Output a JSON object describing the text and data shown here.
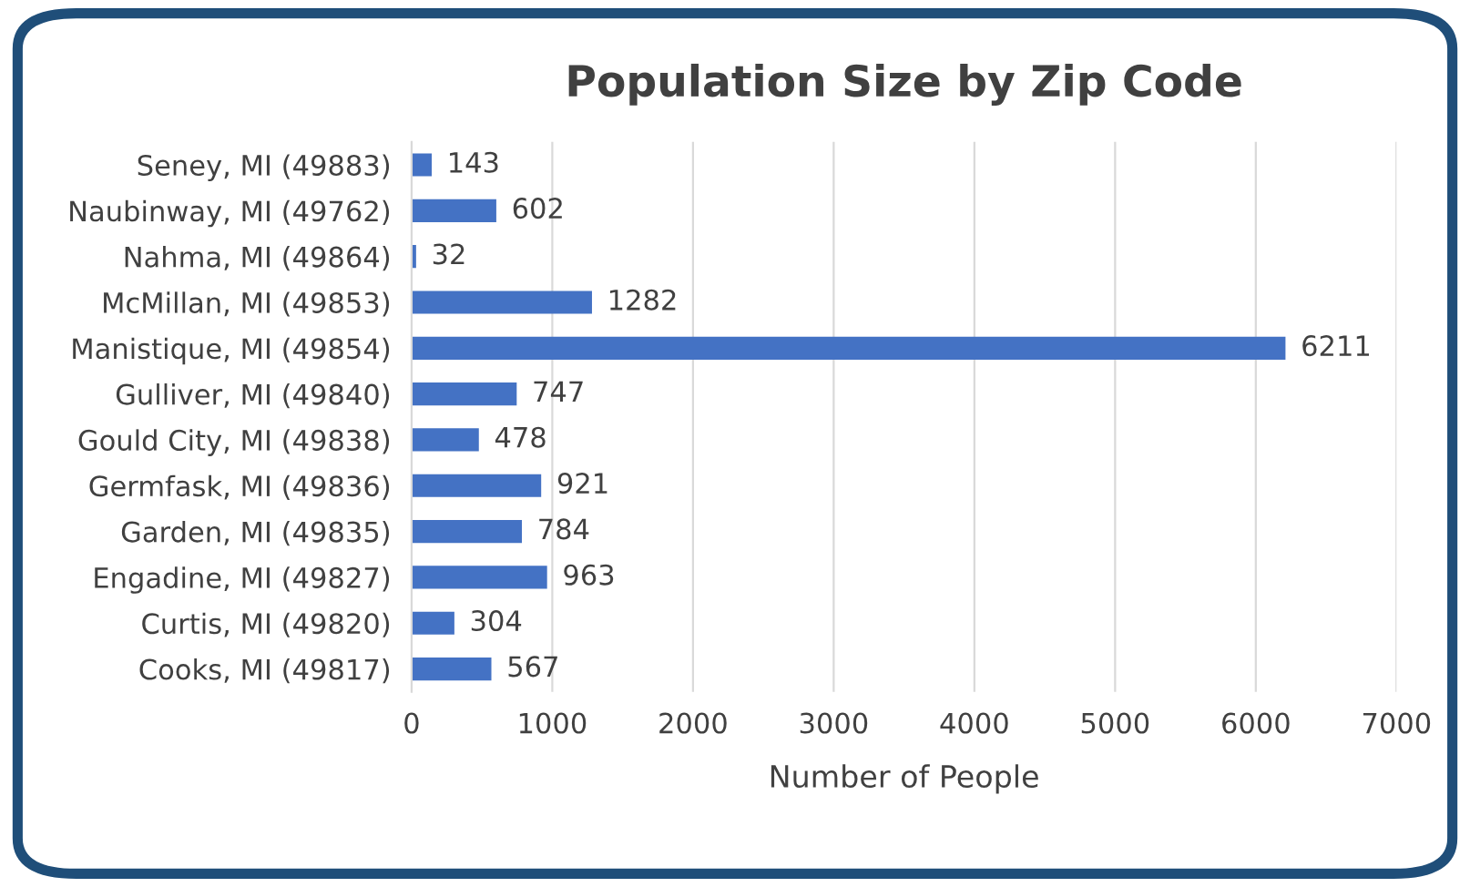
{
  "chart_data": {
    "type": "bar",
    "orientation": "horizontal",
    "title": "Population Size by Zip Code",
    "xlabel": "Number of People",
    "categories": [
      "Seney, MI (49883)",
      "Naubinway, MI (49762)",
      "Nahma, MI (49864)",
      "McMillan, MI (49853)",
      "Manistique, MI (49854)",
      "Gulliver, MI (49840)",
      "Gould City, MI (49838)",
      "Germfask, MI (49836)",
      "Garden, MI (49835)",
      "Engadine, MI (49827)",
      "Curtis, MI (49820)",
      "Cooks, MI (49817)"
    ],
    "values": [
      143,
      602,
      32,
      1282,
      6211,
      747,
      478,
      921,
      784,
      963,
      304,
      567
    ],
    "color": "#4472c4",
    "xlim": [
      0,
      7000
    ],
    "xticks": [
      0,
      1000,
      2000,
      3000,
      4000,
      5000,
      6000,
      7000
    ],
    "grid": "x",
    "data_labels": true
  }
}
